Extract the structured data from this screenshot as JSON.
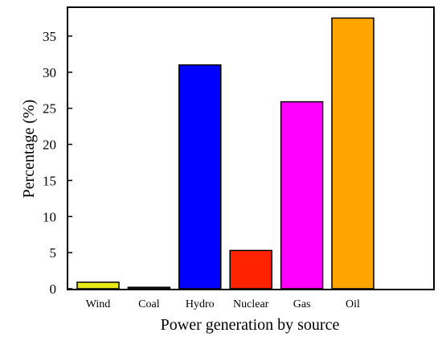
{
  "chart_data": {
    "type": "bar",
    "categories": [
      "Wind",
      "Coal",
      "Hydro",
      "Nuclear",
      "Gas",
      "Oil"
    ],
    "values": [
      0.9,
      0.2,
      31,
      5.3,
      25.9,
      37.5
    ],
    "colors": [
      "#e8e81a",
      "#7a2a1e",
      "#0000ff",
      "#ff2200",
      "#ff00ff",
      "#ffa500"
    ],
    "xlabel": "Power generation by source",
    "ylabel": "Percentage (%)",
    "ylim": [
      0,
      39
    ],
    "yticks": [
      0,
      5,
      10,
      15,
      20,
      25,
      30,
      35
    ],
    "grid": false
  }
}
